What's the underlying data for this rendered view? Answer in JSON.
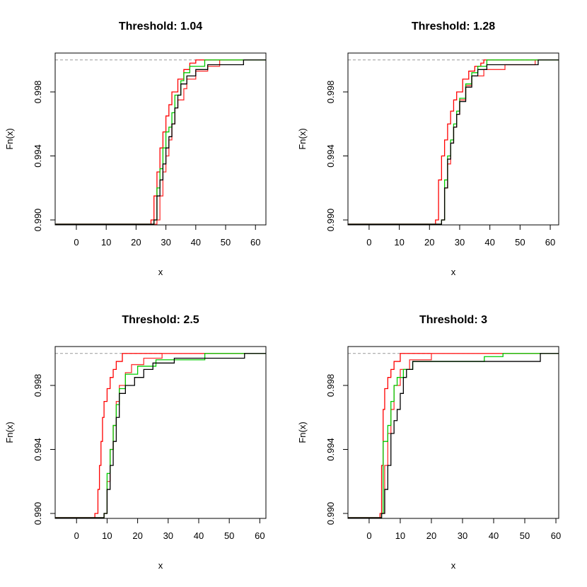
{
  "chart_data": [
    {
      "type": "step",
      "title": "Threshold: 1.04",
      "xlabel": "x",
      "ylabel": "Fn(x)",
      "xlim": [
        -7.1,
        63.5
      ],
      "ylim": [
        0.98969,
        1.00043
      ],
      "xticks": [
        0,
        10,
        20,
        30,
        40,
        50,
        60
      ],
      "yticks": [
        {
          "value": 0.99,
          "label": "0.990"
        },
        {
          "value": 0.994,
          "label": "0.994"
        },
        {
          "value": 0.998,
          "label": "0.998"
        }
      ],
      "hline": 1,
      "series": [
        {
          "color": "#ff0000",
          "x": [
            25,
            26,
            27,
            28,
            29,
            30,
            31,
            32,
            34,
            36,
            38,
            40
          ],
          "values": [
            0.99,
            0.9915,
            0.993,
            0.9945,
            0.9955,
            0.9965,
            0.9972,
            0.998,
            0.9988,
            0.9994,
            0.9998,
            1
          ]
        },
        {
          "color": "#ff3030",
          "x": [
            27,
            28,
            29,
            30,
            31,
            32,
            33,
            34,
            36,
            37,
            40,
            44,
            48
          ],
          "values": [
            0.99,
            0.9915,
            0.993,
            0.994,
            0.995,
            0.996,
            0.997,
            0.9975,
            0.9982,
            0.9988,
            0.9993,
            0.9996,
            1
          ]
        },
        {
          "color": "#00cc00",
          "x": [
            26,
            27,
            28,
            29,
            30,
            31,
            32,
            33,
            35,
            36,
            38,
            43
          ],
          "values": [
            0.99,
            0.992,
            0.9932,
            0.9945,
            0.9955,
            0.9958,
            0.9967,
            0.9978,
            0.9987,
            0.9992,
            0.9996,
            1
          ]
        },
        {
          "color": "#000000",
          "x": [
            26,
            27,
            28,
            29,
            30,
            31,
            32,
            33,
            34,
            35,
            37,
            40,
            44,
            56
          ],
          "values": [
            0.99,
            0.9915,
            0.9925,
            0.9935,
            0.9945,
            0.9952,
            0.996,
            0.997,
            0.9978,
            0.9985,
            0.999,
            0.9994,
            0.9997,
            1
          ]
        }
      ]
    },
    {
      "type": "step",
      "title": "Threshold: 1.28",
      "xlabel": "x",
      "ylabel": "Fn(x)",
      "xlim": [
        -7,
        62.8
      ],
      "ylim": [
        0.98969,
        1.00043
      ],
      "xticks": [
        0,
        10,
        20,
        30,
        40,
        50,
        60
      ],
      "yticks": [
        {
          "value": 0.99,
          "label": "0.990"
        },
        {
          "value": 0.994,
          "label": "0.994"
        },
        {
          "value": 0.998,
          "label": "0.998"
        }
      ],
      "hline": 1,
      "series": [
        {
          "color": "#ff0000",
          "x": [
            22,
            23,
            24,
            25,
            26,
            27,
            28,
            29,
            31,
            33,
            35,
            37,
            38
          ],
          "values": [
            0.99,
            0.9925,
            0.994,
            0.995,
            0.996,
            0.9968,
            0.9975,
            0.998,
            0.9988,
            0.9993,
            0.9996,
            0.9998,
            1
          ]
        },
        {
          "color": "#ff3030",
          "x": [
            24,
            25,
            26,
            27,
            28,
            29,
            30,
            32,
            34,
            38,
            45,
            55
          ],
          "values": [
            0.99,
            0.992,
            0.9935,
            0.9948,
            0.9958,
            0.9966,
            0.9975,
            0.9984,
            0.999,
            0.9994,
            0.9997,
            1
          ]
        },
        {
          "color": "#00cc00",
          "x": [
            24,
            25,
            26,
            27,
            28,
            29,
            30,
            32,
            34,
            36,
            39
          ],
          "values": [
            0.99,
            0.9925,
            0.994,
            0.995,
            0.996,
            0.9968,
            0.9976,
            0.9985,
            0.9992,
            0.9996,
            1
          ]
        },
        {
          "color": "#000000",
          "x": [
            24,
            25,
            26,
            27,
            28,
            29,
            30,
            32,
            34,
            36,
            39,
            56
          ],
          "values": [
            0.99,
            0.992,
            0.9938,
            0.9948,
            0.9958,
            0.9966,
            0.9974,
            0.9983,
            0.999,
            0.9994,
            0.9997,
            1
          ]
        }
      ]
    },
    {
      "type": "step",
      "title": "Threshold: 2.5",
      "xlabel": "x",
      "ylabel": "Fn(x)",
      "xlim": [
        -7,
        62
      ],
      "ylim": [
        0.98969,
        1.00043
      ],
      "xticks": [
        0,
        10,
        20,
        30,
        40,
        50,
        60
      ],
      "yticks": [
        {
          "value": 0.99,
          "label": "0.990"
        },
        {
          "value": 0.994,
          "label": "0.994"
        },
        {
          "value": 0.998,
          "label": "0.998"
        }
      ],
      "hline": 1,
      "series": [
        {
          "color": "#ff0000",
          "x": [
            6,
            7,
            7.5,
            8,
            8.5,
            9,
            10,
            11,
            12,
            13,
            15
          ],
          "values": [
            0.99,
            0.9915,
            0.993,
            0.9945,
            0.996,
            0.997,
            0.9978,
            0.9985,
            0.999,
            0.9995,
            1
          ]
        },
        {
          "color": "#ff3030",
          "x": [
            9,
            10,
            11,
            12,
            13,
            14,
            16,
            18,
            22,
            28
          ],
          "values": [
            0.99,
            0.992,
            0.994,
            0.9955,
            0.997,
            0.998,
            0.9988,
            0.9993,
            0.9997,
            1
          ]
        },
        {
          "color": "#00cc00",
          "x": [
            9,
            10,
            11,
            12,
            13,
            14,
            16,
            20,
            26,
            42
          ],
          "values": [
            0.99,
            0.9925,
            0.994,
            0.9955,
            0.9968,
            0.9978,
            0.9987,
            0.9992,
            0.9996,
            1
          ]
        },
        {
          "color": "#000000",
          "x": [
            9,
            10,
            11,
            12,
            13,
            14,
            16,
            19,
            22,
            25,
            32,
            55
          ],
          "values": [
            0.99,
            0.9915,
            0.993,
            0.9945,
            0.996,
            0.9975,
            0.998,
            0.9985,
            0.999,
            0.9994,
            0.9997,
            1
          ]
        }
      ]
    },
    {
      "type": "step",
      "title": "Threshold: 3",
      "xlabel": "x",
      "ylabel": "Fn(x)",
      "xlim": [
        -6.8,
        60.9
      ],
      "ylim": [
        0.98969,
        1.00043
      ],
      "xticks": [
        0,
        10,
        20,
        30,
        40,
        50,
        60
      ],
      "yticks": [
        {
          "value": 0.99,
          "label": "0.990"
        },
        {
          "value": 0.994,
          "label": "0.994"
        },
        {
          "value": 0.998,
          "label": "0.998"
        }
      ],
      "hline": 1,
      "series": [
        {
          "color": "#ff0000",
          "x": [
            3.5,
            4,
            4.5,
            5,
            6,
            7,
            8,
            10
          ],
          "values": [
            0.99,
            0.993,
            0.9965,
            0.9978,
            0.9985,
            0.999,
            0.9995,
            1
          ]
        },
        {
          "color": "#ff3030",
          "x": [
            4,
            5,
            6,
            7,
            8,
            10,
            13,
            20
          ],
          "values": [
            0.99,
            0.993,
            0.995,
            0.9965,
            0.998,
            0.999,
            0.9996,
            1
          ]
        },
        {
          "color": "#00cc00",
          "x": [
            4,
            4.5,
            6,
            7,
            8,
            9,
            11,
            14,
            37,
            43
          ],
          "values": [
            0.99,
            0.9945,
            0.9955,
            0.997,
            0.998,
            0.9985,
            0.999,
            0.9995,
            0.9998,
            1
          ]
        },
        {
          "color": "#000000",
          "x": [
            4,
            5,
            6,
            7,
            8,
            9,
            10,
            11,
            12,
            14,
            55
          ],
          "values": [
            0.99,
            0.9915,
            0.993,
            0.995,
            0.9958,
            0.9965,
            0.9975,
            0.9985,
            0.999,
            0.9995,
            1
          ]
        }
      ]
    }
  ]
}
